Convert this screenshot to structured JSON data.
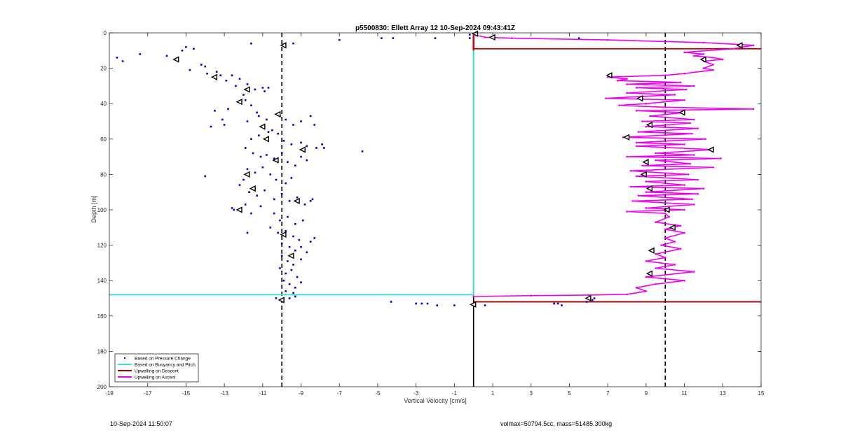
{
  "footer": {
    "timestamp": "10-Sep-2024 11:50:07",
    "info": "volmax=50794.5cc, mass=51485.300kg"
  },
  "chart_data": {
    "type": "scatter",
    "title": "p5500830: Ellett Array 12 10-Sep-2024 09:43:41Z",
    "xlabel": "Vertical Velocity [cm/s]",
    "ylabel": "Depth [m]",
    "xlim": [
      -19,
      15
    ],
    "ylim": [
      0,
      200
    ],
    "y_reversed": true,
    "xticks": [
      -19,
      -17,
      -15,
      -13,
      -11,
      -9,
      -7,
      -5,
      -3,
      -1,
      1,
      3,
      5,
      7,
      9,
      11,
      13,
      15
    ],
    "yticks": [
      0,
      20,
      40,
      60,
      80,
      100,
      120,
      140,
      160,
      180,
      200
    ],
    "grid": false,
    "legend_position": "bottom-left",
    "legend": [
      {
        "label": "Based on Pressure Change",
        "style": "dot",
        "color": "#0000cc"
      },
      {
        "label": "Based on Buoyancy and Pitch",
        "style": "line",
        "color": "#40e0e0"
      },
      {
        "label": "Upwelling on Descent",
        "style": "line",
        "color": "#aa0000"
      },
      {
        "label": "Upwelling on Ascent",
        "style": "line",
        "color": "#ee00ee"
      }
    ],
    "reference_lines": {
      "vertical_dashed": [
        -10,
        10
      ],
      "zero_line": 0
    },
    "pressure_change_points": [
      [
        -18.6,
        14
      ],
      [
        -18.3,
        16
      ],
      [
        -17.4,
        12
      ],
      [
        -16.0,
        13
      ],
      [
        -15.5,
        15
      ],
      [
        -15.2,
        10
      ],
      [
        -15.0,
        8
      ],
      [
        -14.6,
        9
      ],
      [
        -14.2,
        18
      ],
      [
        -14.0,
        19
      ],
      [
        -14.8,
        21
      ],
      [
        -13.9,
        23
      ],
      [
        -13.4,
        22
      ],
      [
        -13.2,
        24
      ],
      [
        -12.9,
        27
      ],
      [
        -12.6,
        24
      ],
      [
        -12.2,
        26
      ],
      [
        -12.4,
        30
      ],
      [
        -12.0,
        35
      ],
      [
        -11.8,
        29
      ],
      [
        -11.4,
        32
      ],
      [
        -11.0,
        31
      ],
      [
        -10.9,
        33
      ],
      [
        -10.7,
        31
      ],
      [
        -11.9,
        38
      ],
      [
        -11.6,
        41
      ],
      [
        -11.3,
        45
      ],
      [
        -12.8,
        43
      ],
      [
        -13.5,
        44
      ],
      [
        -13.1,
        49
      ],
      [
        -13.7,
        53
      ],
      [
        -13.0,
        52
      ],
      [
        -11.8,
        50
      ],
      [
        -11.2,
        47
      ],
      [
        -10.8,
        49
      ],
      [
        -10.5,
        55
      ],
      [
        -10.1,
        47
      ],
      [
        -9.8,
        49
      ],
      [
        -9.4,
        52
      ],
      [
        -9.0,
        50
      ],
      [
        -8.5,
        47
      ],
      [
        -8.3,
        52
      ],
      [
        -11.6,
        60
      ],
      [
        -11.2,
        58
      ],
      [
        -10.7,
        56
      ],
      [
        -10.2,
        57
      ],
      [
        -9.9,
        61
      ],
      [
        -9.5,
        63
      ],
      [
        -9.0,
        62
      ],
      [
        -8.7,
        64
      ],
      [
        -8.2,
        65
      ],
      [
        -7.9,
        63
      ],
      [
        -7.8,
        65
      ],
      [
        -5.8,
        67
      ],
      [
        -11.9,
        65
      ],
      [
        -11.5,
        68
      ],
      [
        -11.1,
        70
      ],
      [
        -10.8,
        69
      ],
      [
        -10.4,
        71
      ],
      [
        -10.0,
        68
      ],
      [
        -9.7,
        73
      ],
      [
        -9.3,
        75
      ],
      [
        -9.0,
        70
      ],
      [
        -8.7,
        72
      ],
      [
        -11.8,
        77
      ],
      [
        -11.4,
        79
      ],
      [
        -11.0,
        76
      ],
      [
        -10.6,
        80
      ],
      [
        -10.3,
        83
      ],
      [
        -9.8,
        85
      ],
      [
        -9.5,
        82
      ],
      [
        -12.0,
        83
      ],
      [
        -12.2,
        86
      ],
      [
        -14.0,
        81
      ],
      [
        -11.7,
        90
      ],
      [
        -11.3,
        92
      ],
      [
        -10.9,
        89
      ],
      [
        -10.4,
        94
      ],
      [
        -10.0,
        91
      ],
      [
        -9.6,
        95
      ],
      [
        -9.2,
        93
      ],
      [
        -8.8,
        97
      ],
      [
        -8.5,
        95
      ],
      [
        -8.4,
        94
      ],
      [
        -12.6,
        99
      ],
      [
        -12.5,
        100
      ],
      [
        -11.9,
        97
      ],
      [
        -11.6,
        102
      ],
      [
        -11.1,
        98
      ],
      [
        -10.4,
        102
      ],
      [
        -10.1,
        106
      ],
      [
        -9.7,
        104
      ],
      [
        -9.3,
        108
      ],
      [
        -8.9,
        106
      ],
      [
        -10.6,
        110
      ],
      [
        -10.2,
        113
      ],
      [
        -9.8,
        112
      ],
      [
        -9.4,
        115
      ],
      [
        -9.1,
        117
      ],
      [
        -8.5,
        118
      ],
      [
        -8.3,
        116
      ],
      [
        -11.8,
        113
      ],
      [
        -10.0,
        119
      ],
      [
        -9.6,
        121
      ],
      [
        -9.3,
        123
      ],
      [
        -9.0,
        121
      ],
      [
        -8.7,
        124
      ],
      [
        -10.0,
        126
      ],
      [
        -9.7,
        129
      ],
      [
        -9.4,
        131
      ],
      [
        -9.0,
        128
      ],
      [
        -10.1,
        133
      ],
      [
        -9.8,
        136
      ],
      [
        -9.5,
        134
      ],
      [
        -9.2,
        138
      ],
      [
        -9.9,
        140
      ],
      [
        -9.6,
        142
      ],
      [
        -9.3,
        144
      ],
      [
        -9.0,
        141
      ],
      [
        -9.8,
        146
      ],
      [
        -9.4,
        147
      ],
      [
        -10.3,
        150
      ],
      [
        -10.0,
        151
      ],
      [
        -9.6,
        150
      ],
      [
        -9.3,
        149
      ],
      [
        -11.6,
        6
      ],
      [
        -9.4,
        6
      ],
      [
        -7.0,
        4
      ],
      [
        -4.8,
        3
      ],
      [
        -4.2,
        3
      ],
      [
        -2.0,
        3
      ],
      [
        -0.2,
        3
      ],
      [
        -0.2,
        1
      ],
      [
        5.5,
        3
      ],
      [
        -4.3,
        152
      ],
      [
        -3.0,
        153
      ],
      [
        -2.7,
        153
      ],
      [
        -2.4,
        153
      ],
      [
        -1.9,
        154
      ],
      [
        -1.0,
        154
      ],
      [
        0.6,
        154
      ],
      [
        4.2,
        153
      ],
      [
        4.6,
        154
      ],
      [
        4.4,
        153
      ],
      [
        5.9,
        152
      ],
      [
        6.2,
        151
      ],
      [
        6.3,
        150
      ]
    ],
    "pressure_change_markers": [
      [
        -15.5,
        15
      ],
      [
        -13.5,
        25
      ],
      [
        -11.8,
        32
      ],
      [
        -12.2,
        39
      ],
      [
        -10.2,
        46
      ],
      [
        -11.0,
        53
      ],
      [
        -10.8,
        60
      ],
      [
        -8.9,
        66
      ],
      [
        -10.3,
        72
      ],
      [
        -11.8,
        80
      ],
      [
        -11.5,
        88
      ],
      [
        -9.2,
        95
      ],
      [
        -12.2,
        100
      ],
      [
        -9.9,
        114
      ],
      [
        -9.5,
        126
      ],
      [
        -10.0,
        151
      ],
      [
        -9.9,
        7
      ]
    ],
    "buoyancy_pitch_line": [
      [
        -19,
        148
      ],
      [
        0,
        148
      ],
      [
        0,
        10
      ]
    ],
    "descent_upwelling": {
      "surface_band": [
        0,
        10
      ],
      "lines": [
        [
          [
            0,
            9
          ],
          [
            15,
            9
          ]
        ],
        [
          [
            0,
            152
          ],
          [
            15,
            152
          ]
        ]
      ]
    },
    "ascent_upwelling": [
      [
        0,
        149
      ],
      [
        3,
        148.5
      ],
      [
        6,
        148.2
      ],
      [
        8,
        147.8
      ],
      [
        9,
        146
      ],
      [
        8.5,
        144
      ],
      [
        9.5,
        142
      ],
      [
        11,
        140
      ],
      [
        9,
        138
      ],
      [
        11.5,
        135
      ],
      [
        9.5,
        133
      ],
      [
        10.5,
        131
      ],
      [
        9,
        129
      ],
      [
        10,
        127
      ],
      [
        9.5,
        125
      ],
      [
        10.8,
        122
      ],
      [
        9.8,
        120
      ],
      [
        10.5,
        118
      ],
      [
        10,
        116
      ],
      [
        11,
        113
      ],
      [
        10,
        111
      ],
      [
        10.8,
        109
      ],
      [
        9.5,
        107
      ],
      [
        10.2,
        104
      ],
      [
        10,
        102
      ],
      [
        8,
        101
      ],
      [
        11,
        100
      ],
      [
        9,
        99
      ],
      [
        11.5,
        97
      ],
      [
        8.3,
        95
      ],
      [
        11.4,
        94
      ],
      [
        8.6,
        92
      ],
      [
        11.7,
        91
      ],
      [
        9,
        90
      ],
      [
        12,
        88
      ],
      [
        8.2,
        87
      ],
      [
        11,
        86
      ],
      [
        9,
        84
      ],
      [
        11.7,
        83
      ],
      [
        8.5,
        81
      ],
      [
        11.2,
        80
      ],
      [
        8.2,
        78
      ],
      [
        12.5,
        76
      ],
      [
        8.8,
        75
      ],
      [
        11.3,
        74
      ],
      [
        9.5,
        72
      ],
      [
        12.9,
        71
      ],
      [
        8,
        70
      ],
      [
        11.5,
        69
      ],
      [
        9.5,
        68
      ],
      [
        12.5,
        66
      ],
      [
        8.5,
        64
      ],
      [
        11,
        63
      ],
      [
        8.5,
        62
      ],
      [
        12.1,
        60
      ],
      [
        7.8,
        59
      ],
      [
        11.4,
        57
      ],
      [
        8.6,
        56
      ],
      [
        11.7,
        54
      ],
      [
        9,
        53
      ],
      [
        11.3,
        51
      ],
      [
        8.8,
        50
      ],
      [
        11.5,
        49
      ],
      [
        9.2,
        47
      ],
      [
        11,
        45
      ],
      [
        8.5,
        44
      ],
      [
        14.6,
        43
      ],
      [
        10,
        42
      ],
      [
        7.6,
        41
      ],
      [
        9,
        40
      ],
      [
        11,
        38
      ],
      [
        6.9,
        37
      ],
      [
        10.5,
        35
      ],
      [
        8,
        34
      ],
      [
        11.1,
        32
      ],
      [
        8.5,
        31
      ],
      [
        11.5,
        30
      ],
      [
        8,
        29
      ],
      [
        10.8,
        28
      ],
      [
        7.5,
        27
      ],
      [
        8,
        26
      ],
      [
        7,
        25
      ],
      [
        10,
        24
      ],
      [
        11,
        23
      ],
      [
        12.5,
        21
      ],
      [
        12,
        20
      ],
      [
        12.5,
        18
      ],
      [
        12,
        16
      ],
      [
        13,
        15
      ],
      [
        12.5,
        14
      ],
      [
        11.5,
        13
      ],
      [
        12,
        12
      ],
      [
        11,
        11
      ],
      [
        13.5,
        9
      ],
      [
        14.6,
        7
      ],
      [
        12,
        5.5
      ],
      [
        7,
        4
      ],
      [
        2,
        3
      ],
      [
        0.6,
        2.5
      ],
      [
        0,
        1
      ]
    ],
    "ascent_markers": [
      [
        0.1,
        0.5
      ],
      [
        1.0,
        2.5
      ],
      [
        13.9,
        7
      ],
      [
        12.0,
        15
      ],
      [
        7.1,
        24
      ],
      [
        8.7,
        37
      ],
      [
        10.9,
        45
      ],
      [
        9.2,
        52
      ],
      [
        8.0,
        59
      ],
      [
        12.4,
        66
      ],
      [
        9.0,
        73
      ],
      [
        8.9,
        80
      ],
      [
        9.2,
        88
      ],
      [
        10.1,
        100
      ],
      [
        10.4,
        110
      ],
      [
        9.3,
        123
      ],
      [
        9.2,
        136
      ],
      [
        6.0,
        150
      ],
      [
        0.0,
        153.5
      ]
    ]
  }
}
